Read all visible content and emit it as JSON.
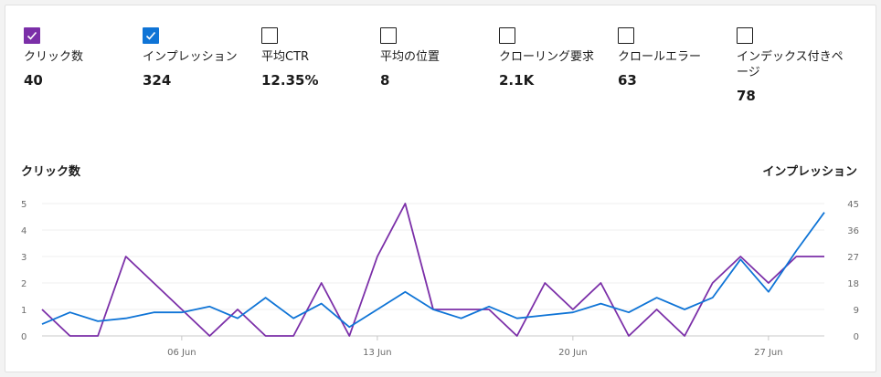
{
  "metrics": [
    {
      "label": "クリック数",
      "value": "40",
      "checked": true,
      "color": "#7b2fa8"
    },
    {
      "label": "インプレッション",
      "value": "324",
      "checked": true,
      "color": "#0f74d6"
    },
    {
      "label": "平均CTR",
      "value": "12.35%",
      "checked": false
    },
    {
      "label": "平均の位置",
      "value": "8",
      "checked": false
    },
    {
      "label": "クローリング要求",
      "value": "2.1K",
      "checked": false
    },
    {
      "label": "クロールエラー",
      "value": "63",
      "checked": false
    },
    {
      "label": "インデックス付きページ",
      "value": "78",
      "checked": false
    }
  ],
  "chart_data": {
    "type": "line",
    "left_axis_title": "クリック数",
    "right_axis_title": "インプレッション",
    "left_ylim": [
      0,
      5
    ],
    "right_ylim": [
      0,
      45
    ],
    "left_ticks": [
      0,
      1,
      2,
      3,
      4,
      5
    ],
    "right_ticks": [
      0,
      9,
      18,
      27,
      36,
      45
    ],
    "x_tick_labels": [
      {
        "label": "06 Jun",
        "index": 5
      },
      {
        "label": "13 Jun",
        "index": 12
      },
      {
        "label": "20 Jun",
        "index": 19
      },
      {
        "label": "27 Jun",
        "index": 26
      }
    ],
    "grid": true,
    "series": [
      {
        "name": "クリック数",
        "axis": "left",
        "color": "#7b2fa8",
        "values": [
          1,
          0,
          0,
          3,
          2,
          1,
          0,
          1,
          0,
          0,
          2,
          0,
          3,
          5,
          1,
          1,
          1,
          0,
          2,
          1,
          2,
          0,
          1,
          0,
          2,
          3,
          2,
          3,
          3
        ]
      },
      {
        "name": "インプレッション",
        "axis": "right",
        "color": "#0f74d6",
        "values": [
          4,
          8,
          5,
          6,
          8,
          8,
          10,
          6,
          13,
          6,
          11,
          3,
          9,
          15,
          9,
          6,
          10,
          6,
          7,
          8,
          11,
          8,
          13,
          9,
          13,
          26,
          15,
          29,
          42
        ]
      }
    ]
  }
}
